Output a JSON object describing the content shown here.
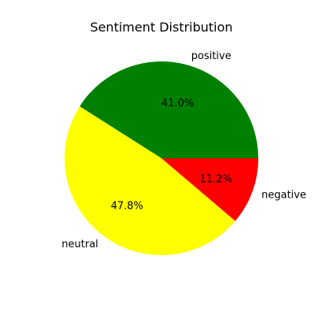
{
  "chart_data": {
    "type": "pie",
    "title": "Sentiment Distribution",
    "start_angle_deg": 0,
    "direction": "counterclockwise",
    "slices": [
      {
        "label": "positive",
        "value": 41.0,
        "pct_label": "41.0%",
        "color": "#008000"
      },
      {
        "label": "neutral",
        "value": 47.8,
        "pct_label": "47.8%",
        "color": "#ffff00"
      },
      {
        "label": "negative",
        "value": 11.2,
        "pct_label": "11.2%",
        "color": "#ff0000"
      }
    ]
  }
}
